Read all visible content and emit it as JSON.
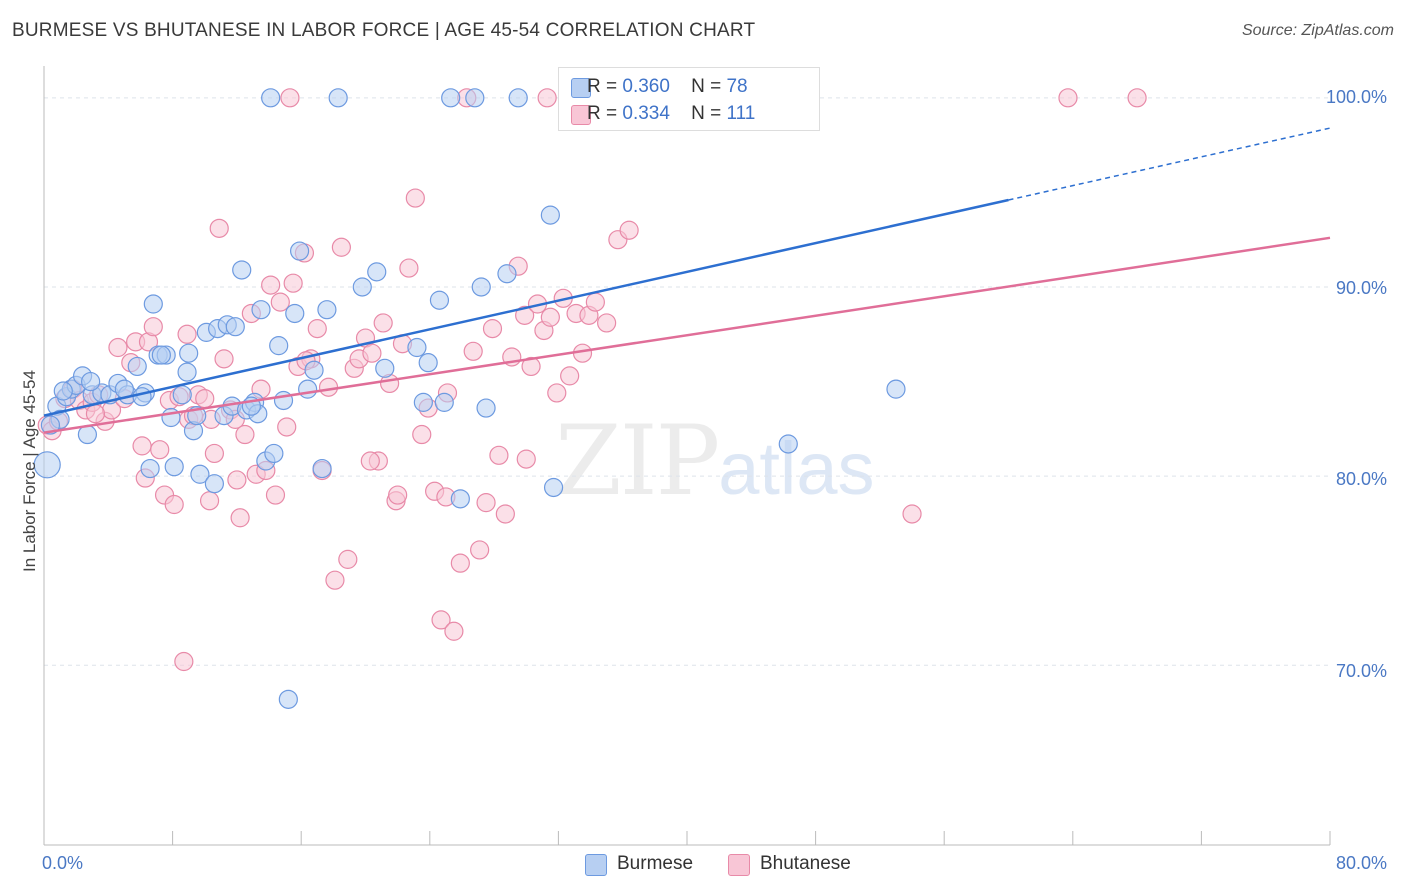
{
  "header": {
    "title": "BURMESE VS BHUTANESE IN LABOR FORCE | AGE 45-54 CORRELATION CHART",
    "source": "Source: ZipAtlas.com"
  },
  "legend": {
    "burmese": {
      "r_label": "R =",
      "r_value": "0.360",
      "n_label": "N =",
      "n_value": "78"
    },
    "bhutanese": {
      "r_label": "R =",
      "r_value": "0.334",
      "n_label": "N =",
      "n_value": "111"
    }
  },
  "bottom_legend": {
    "burmese": "Burmese",
    "bhutanese": "Bhutanese"
  },
  "watermark": {
    "zip": "ZIP",
    "atlas": "atlas"
  },
  "colors": {
    "burmese_fill": "#b7cff2",
    "burmese_stroke": "#6d9ae0",
    "burmese_line": "#2d6fd0",
    "bhutanese_fill": "#f8c6d6",
    "bhutanese_stroke": "#e88aa8",
    "bhutanese_line": "#e06e98",
    "axis_label": "#4a78c4"
  },
  "chart_data": {
    "type": "scatter",
    "title": "BURMESE VS BHUTANESE IN LABOR FORCE | AGE 45-54 CORRELATION CHART",
    "xlabel": "",
    "ylabel": "In Labor Force | Age 45-54",
    "xlim": [
      0,
      80
    ],
    "ylim": [
      60.5,
      102
    ],
    "x_tick_labels": [
      "0.0%",
      "80.0%"
    ],
    "y_tick_labels": [
      "100.0%",
      "90.0%",
      "80.0%",
      "70.0%"
    ],
    "y_ticks": [
      100,
      90,
      80,
      70
    ],
    "grid": true,
    "legend_placement": "top-center",
    "series": [
      {
        "name": "Burmese",
        "r": 0.36,
        "n": 78,
        "trend": {
          "x": [
            0,
            60
          ],
          "y": [
            83.2,
            94.6
          ],
          "dashed_extension_to_x": 80,
          "dashed_end_y": 98.4
        },
        "points": [
          [
            0.2,
            80.6
          ],
          [
            0.8,
            83.7
          ],
          [
            1.0,
            83.0
          ],
          [
            1.4,
            84.2
          ],
          [
            1.7,
            84.6
          ],
          [
            2.0,
            84.8
          ],
          [
            2.4,
            85.3
          ],
          [
            2.7,
            82.2
          ],
          [
            3.0,
            84.3
          ],
          [
            3.6,
            84.4
          ],
          [
            4.1,
            84.3
          ],
          [
            4.6,
            84.9
          ],
          [
            5.2,
            84.3
          ],
          [
            5.8,
            85.8
          ],
          [
            6.3,
            84.4
          ],
          [
            6.6,
            80.4
          ],
          [
            6.8,
            89.1
          ],
          [
            7.1,
            86.4
          ],
          [
            7.6,
            86.4
          ],
          [
            7.9,
            83.1
          ],
          [
            8.1,
            80.5
          ],
          [
            8.6,
            84.3
          ],
          [
            8.9,
            85.5
          ],
          [
            9.0,
            86.5
          ],
          [
            9.3,
            82.4
          ],
          [
            9.7,
            80.1
          ],
          [
            10.1,
            87.6
          ],
          [
            10.6,
            79.6
          ],
          [
            10.8,
            87.8
          ],
          [
            11.2,
            83.2
          ],
          [
            11.4,
            88.0
          ],
          [
            11.7,
            83.7
          ],
          [
            11.9,
            87.9
          ],
          [
            12.3,
            90.9
          ],
          [
            12.6,
            83.5
          ],
          [
            13.1,
            83.9
          ],
          [
            13.3,
            83.3
          ],
          [
            13.5,
            88.8
          ],
          [
            13.8,
            80.8
          ],
          [
            14.3,
            81.2
          ],
          [
            14.6,
            86.9
          ],
          [
            14.9,
            84.0
          ],
          [
            15.2,
            68.2
          ],
          [
            15.6,
            88.6
          ],
          [
            15.9,
            91.9
          ],
          [
            16.4,
            84.6
          ],
          [
            16.8,
            85.6
          ],
          [
            17.3,
            80.4
          ],
          [
            17.6,
            88.8
          ],
          [
            18.3,
            100.0
          ],
          [
            19.8,
            90.0
          ],
          [
            20.7,
            90.8
          ],
          [
            21.2,
            85.7
          ],
          [
            23.2,
            86.8
          ],
          [
            23.6,
            83.9
          ],
          [
            23.9,
            86.0
          ],
          [
            24.6,
            89.3
          ],
          [
            24.9,
            83.9
          ],
          [
            25.3,
            100.0
          ],
          [
            25.9,
            78.8
          ],
          [
            26.8,
            100.0
          ],
          [
            27.2,
            90.0
          ],
          [
            27.5,
            83.6
          ],
          [
            28.8,
            90.7
          ],
          [
            29.5,
            100.0
          ],
          [
            31.5,
            93.8
          ],
          [
            31.7,
            79.4
          ],
          [
            46.3,
            81.7
          ],
          [
            53.0,
            84.6
          ],
          [
            14.1,
            100.0
          ],
          [
            0.4,
            82.7
          ],
          [
            1.2,
            84.5
          ],
          [
            2.9,
            85.0
          ],
          [
            5.0,
            84.6
          ],
          [
            6.1,
            84.2
          ],
          [
            9.5,
            83.2
          ],
          [
            12.9,
            83.7
          ],
          [
            7.3,
            86.4
          ]
        ]
      },
      {
        "name": "Bhutanese",
        "r": 0.334,
        "n": 111,
        "trend": {
          "x": [
            0,
            80
          ],
          "y": [
            82.3,
            92.6
          ]
        },
        "points": [
          [
            0.2,
            82.7
          ],
          [
            0.5,
            82.4
          ],
          [
            0.9,
            82.9
          ],
          [
            1.3,
            84.1
          ],
          [
            1.8,
            84.6
          ],
          [
            2.2,
            84.0
          ],
          [
            2.6,
            83.5
          ],
          [
            3.0,
            83.9
          ],
          [
            3.4,
            84.3
          ],
          [
            3.8,
            82.9
          ],
          [
            4.2,
            83.5
          ],
          [
            4.6,
            86.8
          ],
          [
            5.0,
            84.1
          ],
          [
            5.4,
            86.0
          ],
          [
            5.7,
            87.1
          ],
          [
            6.1,
            81.6
          ],
          [
            6.5,
            87.1
          ],
          [
            6.8,
            87.9
          ],
          [
            7.2,
            81.4
          ],
          [
            7.5,
            79.0
          ],
          [
            7.8,
            84.0
          ],
          [
            8.1,
            78.5
          ],
          [
            8.4,
            84.2
          ],
          [
            8.7,
            70.2
          ],
          [
            9.0,
            83.0
          ],
          [
            9.3,
            83.2
          ],
          [
            9.6,
            84.3
          ],
          [
            10.0,
            84.1
          ],
          [
            10.3,
            78.7
          ],
          [
            10.6,
            81.2
          ],
          [
            10.9,
            93.1
          ],
          [
            11.2,
            86.2
          ],
          [
            11.6,
            83.5
          ],
          [
            11.9,
            83.0
          ],
          [
            12.2,
            77.8
          ],
          [
            12.5,
            82.2
          ],
          [
            12.9,
            88.6
          ],
          [
            13.2,
            80.1
          ],
          [
            13.5,
            84.6
          ],
          [
            13.8,
            80.3
          ],
          [
            14.1,
            90.1
          ],
          [
            14.4,
            79.0
          ],
          [
            14.7,
            89.2
          ],
          [
            15.1,
            82.6
          ],
          [
            15.5,
            90.2
          ],
          [
            15.8,
            85.8
          ],
          [
            16.2,
            91.8
          ],
          [
            16.6,
            86.2
          ],
          [
            17.0,
            87.8
          ],
          [
            17.3,
            80.3
          ],
          [
            17.7,
            84.7
          ],
          [
            18.1,
            74.5
          ],
          [
            18.5,
            92.1
          ],
          [
            18.9,
            75.6
          ],
          [
            19.3,
            85.7
          ],
          [
            19.6,
            86.2
          ],
          [
            20.0,
            87.3
          ],
          [
            20.4,
            86.5
          ],
          [
            20.8,
            80.8
          ],
          [
            21.1,
            88.1
          ],
          [
            21.5,
            84.9
          ],
          [
            21.9,
            78.7
          ],
          [
            22.3,
            87.0
          ],
          [
            22.7,
            91.0
          ],
          [
            23.1,
            94.7
          ],
          [
            23.5,
            82.2
          ],
          [
            23.9,
            83.6
          ],
          [
            24.3,
            79.2
          ],
          [
            24.7,
            72.4
          ],
          [
            25.1,
            84.4
          ],
          [
            25.5,
            71.8
          ],
          [
            25.9,
            75.4
          ],
          [
            26.3,
            100.0
          ],
          [
            26.7,
            86.6
          ],
          [
            27.1,
            76.1
          ],
          [
            27.5,
            78.6
          ],
          [
            27.9,
            87.8
          ],
          [
            28.3,
            81.1
          ],
          [
            28.7,
            78.0
          ],
          [
            29.1,
            86.3
          ],
          [
            29.5,
            91.1
          ],
          [
            29.9,
            88.5
          ],
          [
            30.3,
            85.8
          ],
          [
            30.7,
            89.1
          ],
          [
            31.1,
            87.7
          ],
          [
            31.5,
            88.4
          ],
          [
            31.9,
            84.4
          ],
          [
            32.3,
            89.4
          ],
          [
            32.7,
            85.3
          ],
          [
            33.1,
            88.6
          ],
          [
            33.5,
            86.5
          ],
          [
            33.9,
            88.5
          ],
          [
            34.3,
            89.2
          ],
          [
            35.0,
            88.1
          ],
          [
            35.7,
            92.5
          ],
          [
            36.4,
            93.0
          ],
          [
            16.3,
            86.1
          ],
          [
            22.0,
            79.0
          ],
          [
            30.0,
            80.9
          ],
          [
            54.0,
            78.0
          ],
          [
            63.7,
            100.0
          ],
          [
            68.0,
            100.0
          ],
          [
            15.3,
            100.0
          ],
          [
            31.3,
            100.0
          ],
          [
            25.0,
            78.9
          ],
          [
            8.9,
            87.5
          ],
          [
            20.3,
            80.8
          ],
          [
            12.0,
            79.8
          ],
          [
            10.4,
            83.0
          ],
          [
            6.3,
            79.9
          ],
          [
            3.2,
            83.3
          ]
        ]
      }
    ]
  }
}
